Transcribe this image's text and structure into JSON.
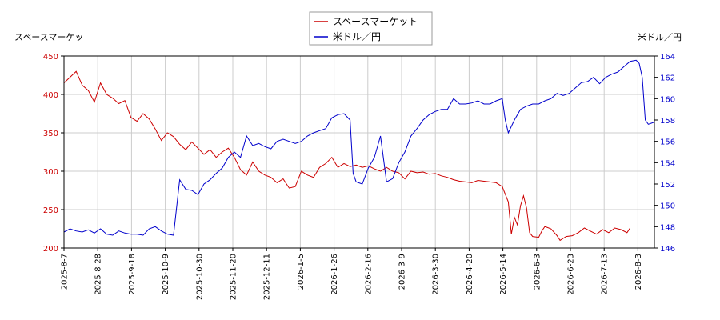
{
  "chart_data": {
    "type": "line",
    "legend_position": "top-center",
    "grid": true,
    "left_axis_label": "スペースマーケッ",
    "right_axis_label": "米ドル／円",
    "x_tick_labels": [
      "2025-8-7",
      "2025-8-28",
      "2025-9-18",
      "2025-10-9",
      "2025-10-30",
      "2025-11-20",
      "2025-12-11",
      "2026-1-5",
      "2026-1-26",
      "2026-2-16",
      "2026-3-9",
      "2026-3-30",
      "2026-4-20",
      "2026-5-14",
      "2026-6-3",
      "2026-6-23",
      "2026-7-13",
      "2026-8-3"
    ],
    "y_left": {
      "lim": [
        200,
        450
      ],
      "ticks": [
        200,
        250,
        300,
        350,
        400,
        450
      ],
      "tick_color": "#cc0000"
    },
    "y_right": {
      "lim": [
        146,
        164
      ],
      "ticks": [
        146,
        148,
        150,
        152,
        154,
        156,
        158,
        160,
        162,
        164
      ],
      "tick_color": "#0000cc"
    },
    "series": [
      {
        "name": "スペースマーケット",
        "axis": "left",
        "color": "#cc0000",
        "points": [
          [
            0,
            415
          ],
          [
            4,
            430
          ],
          [
            6,
            412
          ],
          [
            8,
            405
          ],
          [
            10,
            390
          ],
          [
            12,
            415
          ],
          [
            14,
            400
          ],
          [
            16,
            395
          ],
          [
            18,
            388
          ],
          [
            20,
            392
          ],
          [
            22,
            370
          ],
          [
            24,
            365
          ],
          [
            26,
            375
          ],
          [
            28,
            368
          ],
          [
            30,
            355
          ],
          [
            32,
            340
          ],
          [
            34,
            350
          ],
          [
            36,
            345
          ],
          [
            38,
            335
          ],
          [
            40,
            328
          ],
          [
            42,
            338
          ],
          [
            44,
            330
          ],
          [
            46,
            322
          ],
          [
            48,
            328
          ],
          [
            50,
            318
          ],
          [
            52,
            325
          ],
          [
            54,
            330
          ],
          [
            56,
            318
          ],
          [
            58,
            302
          ],
          [
            60,
            295
          ],
          [
            62,
            312
          ],
          [
            64,
            300
          ],
          [
            66,
            295
          ],
          [
            68,
            292
          ],
          [
            70,
            285
          ],
          [
            72,
            290
          ],
          [
            74,
            278
          ],
          [
            76,
            280
          ],
          [
            78,
            300
          ],
          [
            80,
            295
          ],
          [
            82,
            292
          ],
          [
            84,
            305
          ],
          [
            86,
            310
          ],
          [
            88,
            318
          ],
          [
            90,
            305
          ],
          [
            92,
            310
          ],
          [
            94,
            306
          ],
          [
            96,
            308
          ],
          [
            98,
            305
          ],
          [
            100,
            307
          ],
          [
            102,
            303
          ],
          [
            104,
            300
          ],
          [
            106,
            305
          ],
          [
            108,
            300
          ],
          [
            110,
            298
          ],
          [
            112,
            290
          ],
          [
            114,
            300
          ],
          [
            116,
            298
          ],
          [
            118,
            299
          ],
          [
            120,
            296
          ],
          [
            122,
            297
          ],
          [
            124,
            294
          ],
          [
            126,
            292
          ],
          [
            128,
            289
          ],
          [
            130,
            287
          ],
          [
            132,
            286
          ],
          [
            134,
            285
          ],
          [
            136,
            288
          ],
          [
            138,
            287
          ],
          [
            140,
            286
          ],
          [
            142,
            285
          ],
          [
            144,
            280
          ],
          [
            146,
            260
          ],
          [
            147,
            218
          ],
          [
            148,
            240
          ],
          [
            149,
            230
          ],
          [
            150,
            255
          ],
          [
            151,
            268
          ],
          [
            152,
            252
          ],
          [
            153,
            220
          ],
          [
            154,
            215
          ],
          [
            156,
            214
          ],
          [
            157,
            222
          ],
          [
            158,
            228
          ],
          [
            160,
            225
          ],
          [
            162,
            216
          ],
          [
            163,
            210
          ],
          [
            165,
            215
          ],
          [
            167,
            216
          ],
          [
            169,
            220
          ],
          [
            171,
            226
          ],
          [
            173,
            222
          ],
          [
            175,
            218
          ],
          [
            177,
            224
          ],
          [
            179,
            220
          ],
          [
            181,
            226
          ],
          [
            183,
            224
          ],
          [
            185,
            220
          ],
          [
            186,
            226
          ]
        ]
      },
      {
        "name": "米ドル／円",
        "axis": "right",
        "color": "#0000cc",
        "points": [
          [
            0,
            147.5
          ],
          [
            2,
            147.8
          ],
          [
            4,
            147.6
          ],
          [
            6,
            147.5
          ],
          [
            8,
            147.7
          ],
          [
            10,
            147.4
          ],
          [
            12,
            147.8
          ],
          [
            14,
            147.3
          ],
          [
            16,
            147.2
          ],
          [
            18,
            147.6
          ],
          [
            20,
            147.4
          ],
          [
            22,
            147.3
          ],
          [
            24,
            147.3
          ],
          [
            26,
            147.2
          ],
          [
            28,
            147.8
          ],
          [
            30,
            148.0
          ],
          [
            32,
            147.6
          ],
          [
            34,
            147.3
          ],
          [
            36,
            147.2
          ],
          [
            38,
            152.4
          ],
          [
            40,
            151.5
          ],
          [
            42,
            151.4
          ],
          [
            44,
            151.0
          ],
          [
            46,
            152.0
          ],
          [
            48,
            152.4
          ],
          [
            50,
            153.0
          ],
          [
            52,
            153.5
          ],
          [
            54,
            154.5
          ],
          [
            56,
            155.0
          ],
          [
            58,
            154.5
          ],
          [
            60,
            156.5
          ],
          [
            62,
            155.6
          ],
          [
            64,
            155.8
          ],
          [
            66,
            155.5
          ],
          [
            68,
            155.3
          ],
          [
            70,
            156.0
          ],
          [
            72,
            156.2
          ],
          [
            74,
            156.0
          ],
          [
            76,
            155.8
          ],
          [
            78,
            156.0
          ],
          [
            80,
            156.5
          ],
          [
            82,
            156.8
          ],
          [
            84,
            157.0
          ],
          [
            86,
            157.2
          ],
          [
            88,
            158.2
          ],
          [
            90,
            158.5
          ],
          [
            92,
            158.6
          ],
          [
            94,
            158.0
          ],
          [
            95,
            153.0
          ],
          [
            96,
            152.2
          ],
          [
            98,
            152.0
          ],
          [
            100,
            153.5
          ],
          [
            102,
            154.5
          ],
          [
            104,
            156.5
          ],
          [
            106,
            152.2
          ],
          [
            108,
            152.5
          ],
          [
            110,
            154.0
          ],
          [
            112,
            155.0
          ],
          [
            114,
            156.5
          ],
          [
            116,
            157.2
          ],
          [
            118,
            158.0
          ],
          [
            120,
            158.5
          ],
          [
            122,
            158.8
          ],
          [
            124,
            159.0
          ],
          [
            126,
            159.0
          ],
          [
            128,
            160.0
          ],
          [
            130,
            159.5
          ],
          [
            132,
            159.5
          ],
          [
            134,
            159.6
          ],
          [
            136,
            159.8
          ],
          [
            138,
            159.5
          ],
          [
            140,
            159.5
          ],
          [
            142,
            159.8
          ],
          [
            144,
            160.0
          ],
          [
            145,
            158.0
          ],
          [
            146,
            156.8
          ],
          [
            148,
            158.0
          ],
          [
            150,
            159.0
          ],
          [
            152,
            159.3
          ],
          [
            154,
            159.5
          ],
          [
            156,
            159.5
          ],
          [
            158,
            159.8
          ],
          [
            160,
            160.0
          ],
          [
            162,
            160.5
          ],
          [
            164,
            160.3
          ],
          [
            166,
            160.5
          ],
          [
            168,
            161.0
          ],
          [
            170,
            161.5
          ],
          [
            172,
            161.6
          ],
          [
            174,
            162.0
          ],
          [
            176,
            161.4
          ],
          [
            178,
            162.0
          ],
          [
            180,
            162.3
          ],
          [
            182,
            162.5
          ],
          [
            184,
            163.0
          ],
          [
            186,
            163.5
          ],
          [
            188,
            163.6
          ],
          [
            189,
            163.3
          ],
          [
            190,
            162.0
          ],
          [
            191,
            158.0
          ],
          [
            192,
            157.6
          ],
          [
            193,
            157.7
          ],
          [
            194,
            157.8
          ]
        ]
      }
    ]
  }
}
